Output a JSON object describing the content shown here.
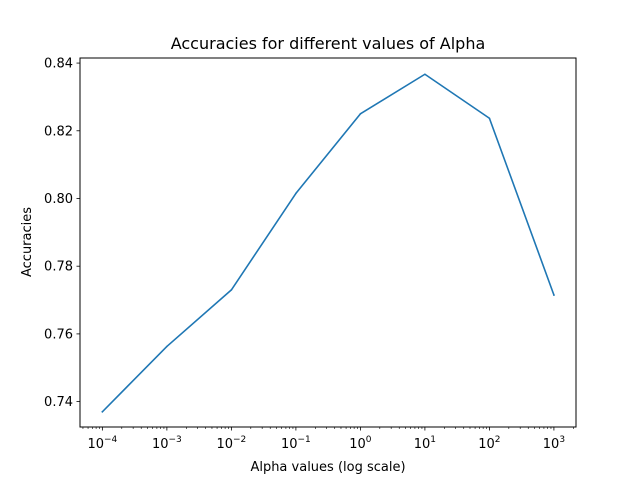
{
  "chart_data": {
    "type": "line",
    "title": "Accuracies for different values of Alpha",
    "xlabel": "Alpha values (log scale)",
    "ylabel": "Accuracies",
    "x_scale": "log",
    "x": [
      0.0001,
      0.001,
      0.01,
      0.1,
      1,
      10,
      100,
      1000
    ],
    "series": [
      {
        "values": [
          0.737,
          0.7563,
          0.773,
          0.8015,
          0.825,
          0.8367,
          0.8237,
          0.7715
        ],
        "color": "#1f77b4"
      }
    ],
    "xlim": [
      4.5e-05,
      2200
    ],
    "ylim": [
      0.7325,
      0.8415
    ],
    "x_ticks": [
      {
        "value": 0.0001,
        "base": "10",
        "exp": "−4"
      },
      {
        "value": 0.001,
        "base": "10",
        "exp": "−3"
      },
      {
        "value": 0.01,
        "base": "10",
        "exp": "−2"
      },
      {
        "value": 0.1,
        "base": "10",
        "exp": "−1"
      },
      {
        "value": 1,
        "base": "10",
        "exp": "0"
      },
      {
        "value": 10,
        "base": "10",
        "exp": "1"
      },
      {
        "value": 100,
        "base": "10",
        "exp": "2"
      },
      {
        "value": 1000,
        "base": "10",
        "exp": "3"
      }
    ],
    "y_ticks": [
      {
        "value": 0.74,
        "label": "0.74"
      },
      {
        "value": 0.76,
        "label": "0.76"
      },
      {
        "value": 0.78,
        "label": "0.78"
      },
      {
        "value": 0.8,
        "label": "0.80"
      },
      {
        "value": 0.82,
        "label": "0.82"
      },
      {
        "value": 0.84,
        "label": "0.84"
      }
    ],
    "grid": false,
    "legend": "none"
  }
}
